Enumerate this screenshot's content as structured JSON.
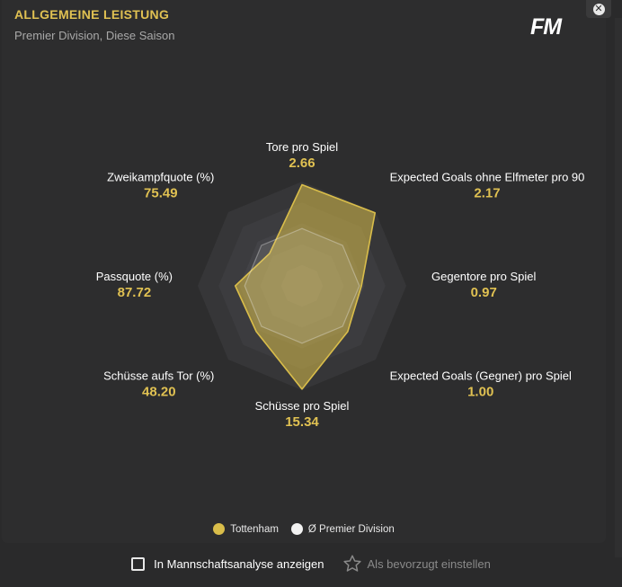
{
  "header": {
    "title": "ALLGEMEINE LEISTUNG",
    "subtitle": "Premier Division, Diese Saison",
    "logo": "FM",
    "close_icon": "close-icon"
  },
  "chart_data": {
    "type": "radar",
    "axes": [
      {
        "label": "Tore pro Spiel",
        "value": "2.66"
      },
      {
        "label": "Expected Goals ohne Elfmeter pro 90",
        "value": "2.17"
      },
      {
        "label": "Gegentore pro Spiel",
        "value": "0.97"
      },
      {
        "label": "Expected Goals (Gegner) pro Spiel",
        "value": "1.00"
      },
      {
        "label": "Schüsse pro Spiel",
        "value": "15.34"
      },
      {
        "label": "Schüsse aufs Tor (%)",
        "value": "48.20"
      },
      {
        "label": "Passquote (%)",
        "value": "87.72"
      },
      {
        "label": "Zweikampfquote (%)",
        "value": "75.49"
      }
    ],
    "series": [
      {
        "name": "Tottenham",
        "color": "#d9bd4a",
        "normalized": [
          0.97,
          0.99,
          0.57,
          0.62,
          0.99,
          0.62,
          0.64,
          0.44
        ]
      },
      {
        "name": "Ø Premier Division",
        "color": "#f2f2f2",
        "normalized": [
          0.55,
          0.55,
          0.55,
          0.55,
          0.55,
          0.55,
          0.55,
          0.55
        ]
      }
    ]
  },
  "legend": [
    {
      "name": "Tottenham",
      "color": "#d9bd4a"
    },
    {
      "name": "Ø Premier Division",
      "color": "#f2f2f2"
    }
  ],
  "footer": {
    "checkbox_label": "In Mannschaftsanalyse anzeigen",
    "favorite_label": "Als bevorzugt einstellen",
    "favorite_icon": "star-icon"
  }
}
